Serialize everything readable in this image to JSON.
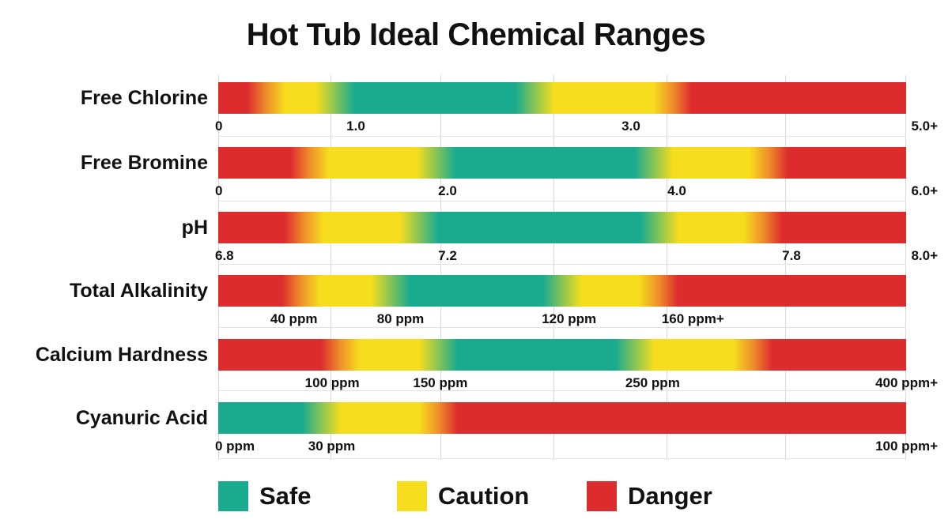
{
  "chart_data": {
    "type": "range-bar",
    "title": "Hot Tub Ideal Chemical Ranges",
    "colors": {
      "safe": "#1aab8f",
      "caution": "#f6dd1e",
      "danger": "#dd2c2e",
      "orange": "#ef8f2a"
    },
    "legend": [
      {
        "key": "safe",
        "label": "Safe"
      },
      {
        "key": "caution",
        "label": "Caution"
      },
      {
        "key": "danger",
        "label": "Danger"
      }
    ],
    "rows": [
      {
        "label": "Free Chlorine",
        "scale_min": 0,
        "scale_max": 5,
        "ticks": [
          {
            "label": "0",
            "value": 0
          },
          {
            "label": "1.0",
            "value": 1
          },
          {
            "label": "3.0",
            "value": 3
          },
          {
            "label": "5.0+",
            "value": 5
          }
        ],
        "zones": [
          {
            "from": 0,
            "to": 0.35,
            "level": "danger"
          },
          {
            "from": 0.35,
            "to": 0.85,
            "level": "caution"
          },
          {
            "from": 0.85,
            "to": 2.3,
            "level": "safe"
          },
          {
            "from": 2.3,
            "to": 3.3,
            "level": "caution"
          },
          {
            "from": 3.3,
            "to": 5,
            "level": "danger"
          }
        ]
      },
      {
        "label": "Free Bromine",
        "scale_min": 0,
        "scale_max": 6,
        "ticks": [
          {
            "label": "0",
            "value": 0
          },
          {
            "label": "2.0",
            "value": 2
          },
          {
            "label": "4.0",
            "value": 4
          },
          {
            "label": "6.0+",
            "value": 6
          }
        ],
        "zones": [
          {
            "from": 0,
            "to": 0.8,
            "level": "danger"
          },
          {
            "from": 0.8,
            "to": 1.9,
            "level": "caution"
          },
          {
            "from": 1.9,
            "to": 3.8,
            "level": "safe"
          },
          {
            "from": 3.8,
            "to": 4.8,
            "level": "caution"
          },
          {
            "from": 4.8,
            "to": 6,
            "level": "danger"
          }
        ]
      },
      {
        "label": "pH",
        "scale_min": 6.8,
        "scale_max": 8.0,
        "ticks": [
          {
            "label": "6.8",
            "value": 6.8
          },
          {
            "label": "7.2",
            "value": 7.2
          },
          {
            "label": "7.8",
            "value": 7.8
          },
          {
            "label": "8.0+",
            "value": 8.0
          }
        ],
        "zones": [
          {
            "from": 6.8,
            "to": 6.95,
            "level": "danger"
          },
          {
            "from": 6.95,
            "to": 7.15,
            "level": "caution"
          },
          {
            "from": 7.15,
            "to": 7.57,
            "level": "safe"
          },
          {
            "from": 7.57,
            "to": 7.75,
            "level": "caution"
          },
          {
            "from": 7.75,
            "to": 8.0,
            "level": "danger"
          }
        ]
      },
      {
        "label": "Total Alkalinity",
        "scale_min": 0,
        "scale_max": 200,
        "ticks": [
          {
            "label": "40 ppm",
            "value": 22
          },
          {
            "label": "80 ppm",
            "value": 53
          },
          {
            "label": "120 ppm",
            "value": 102
          },
          {
            "label": "160 ppm+",
            "value": 138
          }
        ],
        "zones": [
          {
            "from": 0,
            "to": 24,
            "level": "danger"
          },
          {
            "from": 24,
            "to": 50,
            "level": "caution"
          },
          {
            "from": 50,
            "to": 100,
            "level": "safe"
          },
          {
            "from": 100,
            "to": 128,
            "level": "caution"
          },
          {
            "from": 128,
            "to": 200,
            "level": "danger"
          }
        ]
      },
      {
        "label": "Calcium Hardness",
        "scale_min": 50,
        "scale_max": 400,
        "ticks": [
          {
            "label": "100 ppm",
            "value": 108
          },
          {
            "label": "150 ppm",
            "value": 163
          },
          {
            "label": "250 ppm",
            "value": 271
          },
          {
            "label": "400 ppm+",
            "value": 400
          }
        ],
        "zones": [
          {
            "from": 50,
            "to": 112,
            "level": "danger"
          },
          {
            "from": 112,
            "to": 162,
            "level": "caution"
          },
          {
            "from": 162,
            "to": 262,
            "level": "safe"
          },
          {
            "from": 262,
            "to": 322,
            "level": "caution"
          },
          {
            "from": 322,
            "to": 400,
            "level": "danger"
          }
        ]
      },
      {
        "label": "Cyanuric Acid",
        "scale_min": 0,
        "scale_max": 100,
        "ticks": [
          {
            "label": "0 ppm",
            "value": 0
          },
          {
            "label": "30 ppm",
            "value": 16.5
          },
          {
            "label": "100 ppm+",
            "value": 100
          }
        ],
        "zones": [
          {
            "from": 0,
            "to": 15,
            "level": "safe"
          },
          {
            "from": 15,
            "to": 32,
            "level": "caution"
          },
          {
            "from": 32,
            "to": 100,
            "level": "danger"
          }
        ]
      }
    ]
  }
}
